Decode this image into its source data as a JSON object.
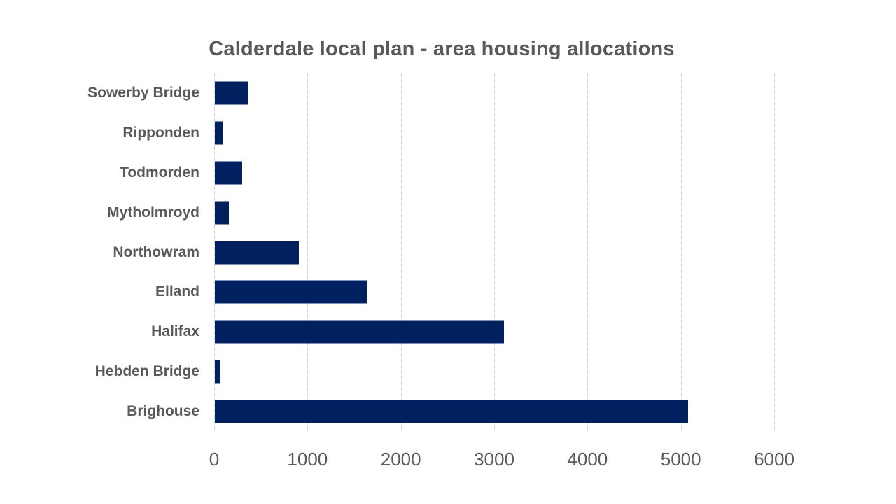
{
  "chart_data": {
    "type": "bar",
    "orientation": "horizontal",
    "title": "Calderdale local plan - area housing allocations",
    "categories": [
      "Sowerby Bridge",
      "Ripponden",
      "Todmorden",
      "Mytholmroyd",
      "Northowram",
      "Elland",
      "Halifax",
      "Hebden Bridge",
      "Brighouse"
    ],
    "values": [
      350,
      85,
      290,
      150,
      900,
      1625,
      3100,
      60,
      5070
    ],
    "xlabel": "",
    "ylabel": "",
    "xlim": [
      0,
      6000
    ],
    "x_ticks": [
      0,
      1000,
      2000,
      3000,
      4000,
      5000,
      6000
    ],
    "grid": "vertical-dashed",
    "legend": "none",
    "bar_color": "#002060",
    "gridline_color": "#d6d6d6",
    "text_color": "#595959",
    "background_color": "#ffffff"
  }
}
